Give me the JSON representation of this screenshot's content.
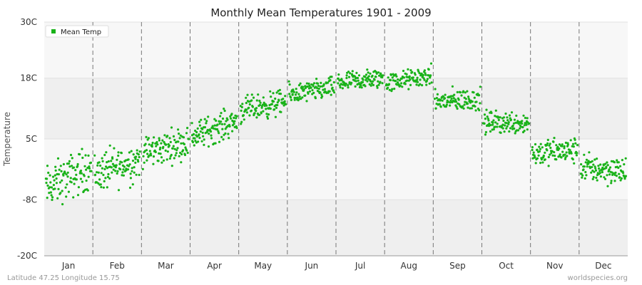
{
  "chart_data": {
    "type": "scatter",
    "title": "Monthly Mean Temperatures 1901 - 2009",
    "ylabel": "Temperature",
    "xlabel": "",
    "yticks": [
      "30C",
      "18C",
      "5C",
      "-8C",
      "-20C"
    ],
    "ylim": [
      -20,
      30
    ],
    "categories": [
      "Jan",
      "Feb",
      "Mar",
      "Apr",
      "May",
      "Jun",
      "Jul",
      "Aug",
      "Sep",
      "Oct",
      "Nov",
      "Dec"
    ],
    "series": [
      {
        "name": "Mean Temp",
        "color": "#19b219",
        "points_per_month": 109,
        "month_ranges": [
          {
            "start": -5.5,
            "end": -1.0,
            "spread": 3.8
          },
          {
            "start": -2.5,
            "end": 0.5,
            "spread": 3.5
          },
          {
            "start": 2.0,
            "end": 4.5,
            "spread": 2.8
          },
          {
            "start": 5.5,
            "end": 9.0,
            "spread": 2.5
          },
          {
            "start": 11.0,
            "end": 13.0,
            "spread": 2.2
          },
          {
            "start": 14.5,
            "end": 16.0,
            "spread": 1.8
          },
          {
            "start": 17.0,
            "end": 18.0,
            "spread": 1.8
          },
          {
            "start": 17.0,
            "end": 18.5,
            "spread": 1.7
          },
          {
            "start": 13.0,
            "end": 13.5,
            "spread": 2.0
          },
          {
            "start": 8.5,
            "end": 8.5,
            "spread": 2.0
          },
          {
            "start": 2.0,
            "end": 2.5,
            "spread": 2.3
          },
          {
            "start": -1.0,
            "end": -2.0,
            "spread": 2.5
          }
        ]
      }
    ],
    "legend": {
      "label": "Mean Temp",
      "position": "top-left"
    },
    "grid": true,
    "vertical_month_separators": "dashed"
  },
  "footer": {
    "left": "Latitude 47.25 Longitude 15.75",
    "right": "worldspecies.org"
  }
}
